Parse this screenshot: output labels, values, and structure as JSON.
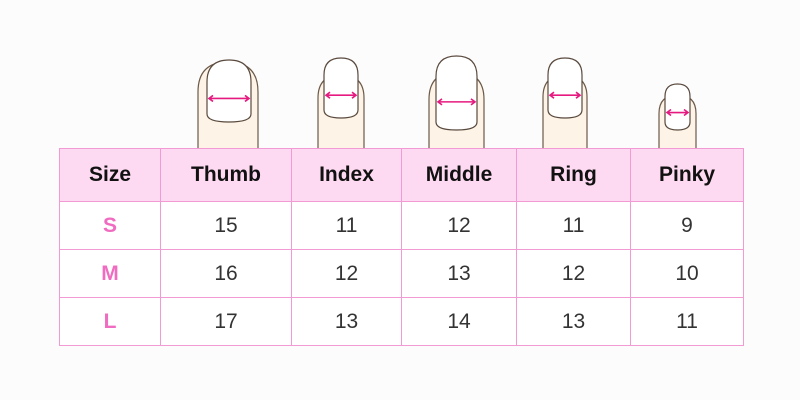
{
  "colors": {
    "header_bg": "#fddaf1",
    "border": "#f29ad3",
    "size_label": "#f06cc0",
    "arrow": "#e5197f",
    "finger": "#fdf3e6"
  },
  "chart_data": {
    "type": "table",
    "columns": [
      "Size",
      "Thumb",
      "Index",
      "Middle",
      "Ring",
      "Pinky"
    ],
    "rows": [
      {
        "size": "S",
        "values": [
          "15",
          "11",
          "12",
          "11",
          "9"
        ]
      },
      {
        "size": "M",
        "values": [
          "16",
          "12",
          "13",
          "12",
          "10"
        ]
      },
      {
        "size": "L",
        "values": [
          "17",
          "13",
          "14",
          "13",
          "11"
        ]
      }
    ]
  }
}
